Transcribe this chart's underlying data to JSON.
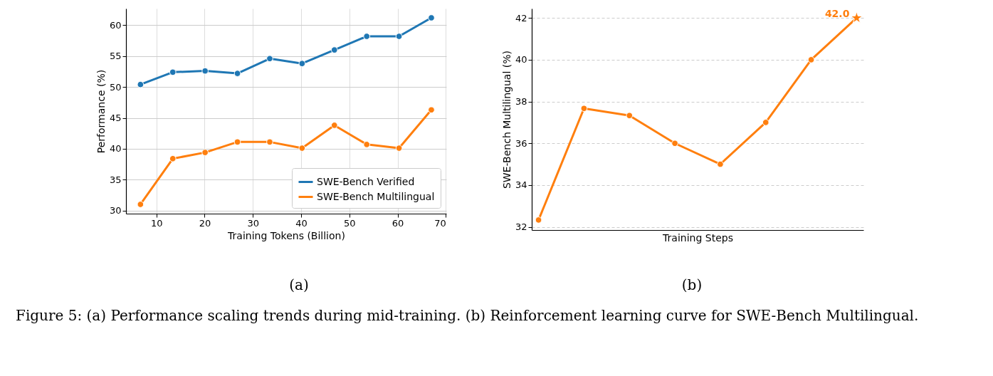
{
  "chart_data": [
    {
      "type": "line",
      "xlabel": "Training Tokens (Billion)",
      "ylabel": "Performance (%)",
      "x": [
        6.7,
        13.4,
        20.1,
        26.8,
        33.5,
        40.2,
        46.9,
        53.6,
        60.3,
        67.0
      ],
      "xlim": [
        3.7,
        70.1
      ],
      "xticks": [
        10,
        20,
        30,
        40,
        50,
        60,
        70
      ],
      "ylim": [
        29.5,
        62.7
      ],
      "yticks": [
        30,
        35,
        40,
        45,
        50,
        55,
        60
      ],
      "grid": true,
      "legend": "bottom right",
      "marker": "circle",
      "line_style": "solid",
      "series": [
        {
          "name": "SWE-Bench Verified",
          "color": "#1f77b4",
          "values": [
            50.4,
            52.4,
            52.6,
            52.2,
            54.6,
            53.8,
            56.0,
            58.2,
            58.2,
            61.2
          ]
        },
        {
          "name": "SWE-Bench Multilingual",
          "color": "#ff7f0e",
          "values": [
            31.0,
            38.4,
            39.4,
            41.1,
            41.1,
            40.1,
            43.8,
            40.7,
            40.1,
            46.3
          ]
        }
      ],
      "annotations": [
        "(a)",
        "Figure 5: (a) Performance scaling trends during mid-training. (b) Reinforcement learning curve for SWE-Bench Multilingual."
      ]
    },
    {
      "type": "line",
      "xlabel": "Training Steps",
      "ylabel": "SWE-Bench Multilingual (%)",
      "categories": [
        null,
        null,
        null,
        null,
        null,
        null,
        null,
        null
      ],
      "ylim": [
        31.85,
        42.45
      ],
      "yticks": [
        32,
        34,
        36,
        38,
        40,
        42
      ],
      "grid": "y",
      "tick_labels": "y",
      "marker": "circle",
      "line_style": "solid",
      "series": [
        {
          "color": "#ff7f0e",
          "values": [
            32.33,
            37.67,
            37.33,
            36.0,
            35.0,
            37.0,
            40.0,
            42.0
          ]
        },
        {
          "type": "scatter",
          "marker": "star",
          "color": "#ff7f0e",
          "values": [
            null,
            null,
            null,
            null,
            null,
            null,
            null,
            42.0
          ],
          "value_labels": [
            null,
            null,
            null,
            null,
            null,
            null,
            null,
            "42.0"
          ]
        }
      ],
      "annotations": [
        "(b)"
      ]
    }
  ]
}
